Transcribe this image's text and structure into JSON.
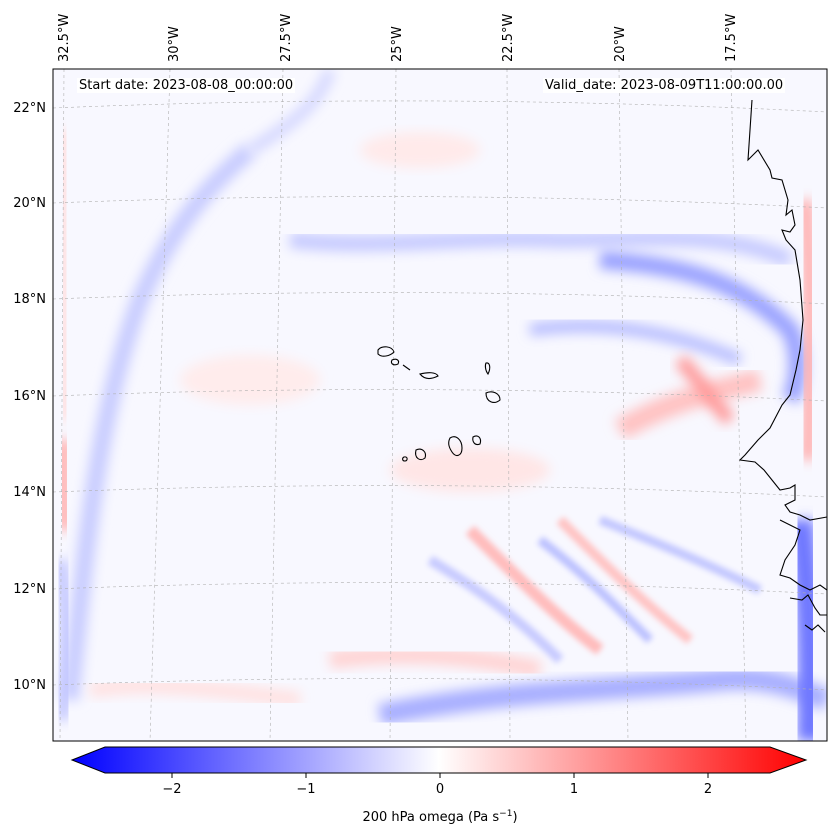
{
  "header": {
    "start_date": "Start date: 2023-08-08_00:00:00",
    "valid_date": "Valid_date: 2023-08-09T11:00:00.00"
  },
  "lon_labels": [
    "32.5°W",
    "30°W",
    "27.5°W",
    "25°W",
    "22.5°W",
    "20°W",
    "17.5°W"
  ],
  "lat_labels": [
    "22°N",
    "20°N",
    "18°N",
    "16°N",
    "14°N",
    "12°N",
    "10°N"
  ],
  "colorbar": {
    "label": "200 hPa omega (Pa s",
    "label_sup": "−1",
    "label_end": ")",
    "ticks": [
      "−2",
      "−1",
      "0",
      "1",
      "2"
    ],
    "min": -2.6,
    "max": 2.6,
    "low_color": "#0000ff",
    "mid_color": "#ffffff",
    "high_color": "#ff0000"
  },
  "colors": {
    "coastline": "#000000",
    "gridline": "#b0b0b0"
  }
}
